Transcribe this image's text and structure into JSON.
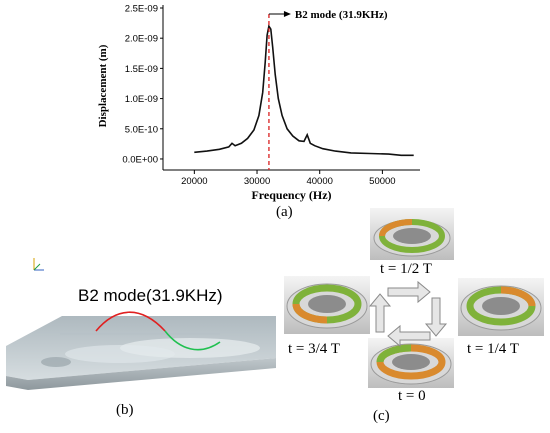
{
  "chart_data": {
    "type": "line",
    "xlabel": "Frequency (Hz)",
    "ylabel": "Displacement (m)",
    "xlim": [
      15000,
      56000
    ],
    "ylim": [
      -1e-10,
      2.5e-09
    ],
    "xticks": [
      20000,
      30000,
      40000,
      50000
    ],
    "yticks": [
      0,
      5e-10,
      1e-09,
      1.5e-09,
      2e-09,
      2.5e-09
    ],
    "ytick_labels": [
      "0.0E+00",
      "5.0E-10",
      "1.0E-09",
      "1.5E-09",
      "2.0E-09",
      "2.5E-09"
    ],
    "x": [
      20000,
      22000,
      24000,
      25500,
      26000,
      26500,
      27500,
      28500,
      29500,
      30300,
      30900,
      31300,
      31600,
      31900,
      32200,
      32500,
      32900,
      33400,
      34000,
      34800,
      35700,
      36700,
      37500,
      38000,
      38500,
      39200,
      40500,
      42500,
      45000,
      48000,
      51000,
      53000,
      55000
    ],
    "values": [
      1.1e-10,
      1.3e-10,
      1.6e-10,
      2e-10,
      2.6e-10,
      2.2e-10,
      2.6e-10,
      3.4e-10,
      4.8e-10,
      7.2e-10,
      1.1e-09,
      1.6e-09,
      2.05e-09,
      2.2e-09,
      2.15e-09,
      1.85e-09,
      1.4e-09,
      1e-09,
      7.2e-10,
      5e-10,
      3.8e-10,
      3e-10,
      2.9e-10,
      4e-10,
      2.6e-10,
      2.2e-10,
      1.7e-10,
      1.3e-10,
      1e-10,
      9e-11,
      8e-11,
      6e-11,
      6e-11
    ],
    "marker_x": 31900,
    "annotation": "B2 mode (31.9KHz)"
  },
  "labels": {
    "panel_a": "(a)",
    "panel_b": "(b)",
    "panel_c": "(c)",
    "mode_title": "B2 mode(31.9KHz)",
    "t_half": "t = 1/2 T",
    "t_quarter": "t = 1/4 T",
    "t_three_quarter": "t = 3/4 T",
    "t_zero": "t = 0"
  },
  "colors": {
    "curve": "#111111",
    "marker": "#d92020",
    "wave_red": "#e02020",
    "wave_green": "#20c050",
    "substrate": "#c9d3d8",
    "ring_green": "#7fb23a",
    "ring_orange": "#d98a2e"
  }
}
